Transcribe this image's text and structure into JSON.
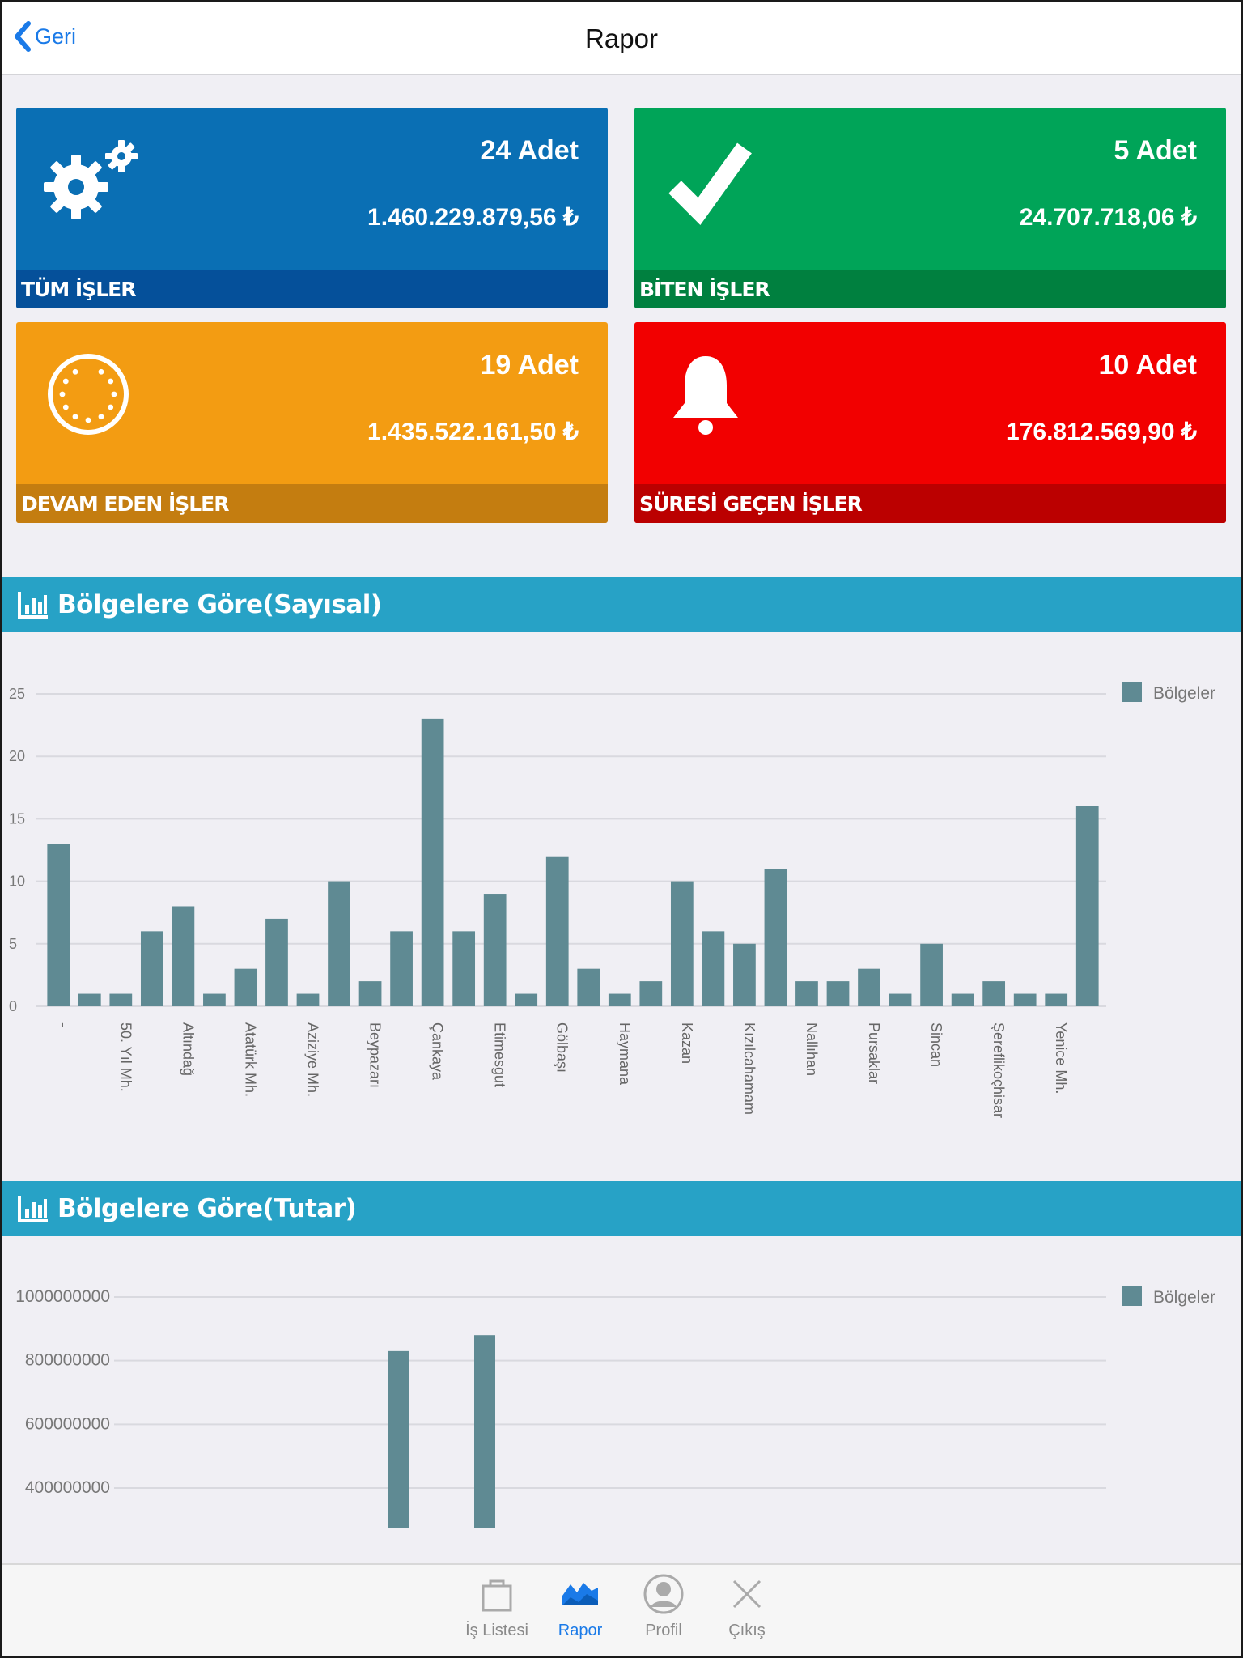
{
  "navbar": {
    "back_label": "Geri",
    "title": "Rapor"
  },
  "cards": [
    {
      "count": "24 Adet",
      "amount": "1.460.229.879,56 ₺",
      "label": "TÜM İŞLER",
      "icon": "gears-icon",
      "color": "#0a6fb4"
    },
    {
      "count": "5 Adet",
      "amount": "24.707.718,06 ₺",
      "label": "BİTEN İŞLER",
      "icon": "checkmark-icon",
      "color": "#00a458"
    },
    {
      "count": "19 Adet",
      "amount": "1.435.522.161,50 ₺",
      "label": "DEVAM EDEN İŞLER",
      "icon": "loading-circle-icon",
      "color": "#f39c12"
    },
    {
      "count": "10 Adet",
      "amount": "176.812.569,90 ₺",
      "label": "SÜRESİ GEÇEN İŞLER",
      "icon": "bell-icon",
      "color": "#f20000"
    }
  ],
  "sections": [
    {
      "title": "Bölgelere Göre(Sayısal)",
      "icon": "bar-chart-icon"
    },
    {
      "title": "Bölgelere Göre(Tutar)",
      "icon": "bar-chart-icon"
    }
  ],
  "chart_data": [
    {
      "type": "bar",
      "legend": "Bölgeler",
      "legend_position": "top-right",
      "grid": true,
      "bar_color": "#5f8a93",
      "ylim": [
        0,
        25
      ],
      "yticks": [
        "0",
        "5",
        "10",
        "15",
        "20",
        "25"
      ],
      "x_tick_labels": [
        "-",
        "50. Yıl Mh.",
        "Altındağ",
        "Atatürk Mh.",
        "Aziziye Mh.",
        "Beypazarı",
        "Çankaya",
        "Etimesgut",
        "Gölbaşı",
        "Haymana",
        "Kazan",
        "Kızılcahamam",
        "Nallıhan",
        "Pursaklar",
        "Sincan",
        "Şereflikoçhisar",
        "Yenice Mh."
      ],
      "values": [
        13,
        1,
        1,
        6,
        8,
        1,
        3,
        7,
        1,
        10,
        2,
        6,
        23,
        6,
        9,
        1,
        12,
        3,
        1,
        2,
        10,
        6,
        5,
        11,
        2,
        2,
        3,
        1,
        5,
        1,
        2,
        1,
        1,
        16
      ]
    },
    {
      "type": "bar",
      "legend": "Bölgeler",
      "legend_position": "top-right",
      "grid": true,
      "bar_color": "#5f8a93",
      "yticks": [
        "400000000",
        "600000000",
        "800000000",
        "1000000000"
      ],
      "visible_bars": [
        {
          "approx_value": 830000000
        },
        {
          "approx_value": 880000000
        }
      ]
    }
  ],
  "tabbar": [
    {
      "label": "İş Listesi",
      "icon": "bag-icon",
      "active": false
    },
    {
      "label": "Rapor",
      "icon": "chart-area-icon",
      "active": true
    },
    {
      "label": "Profil",
      "icon": "user-icon",
      "active": false
    },
    {
      "label": "Çıkış",
      "icon": "close-icon",
      "active": false
    }
  ]
}
